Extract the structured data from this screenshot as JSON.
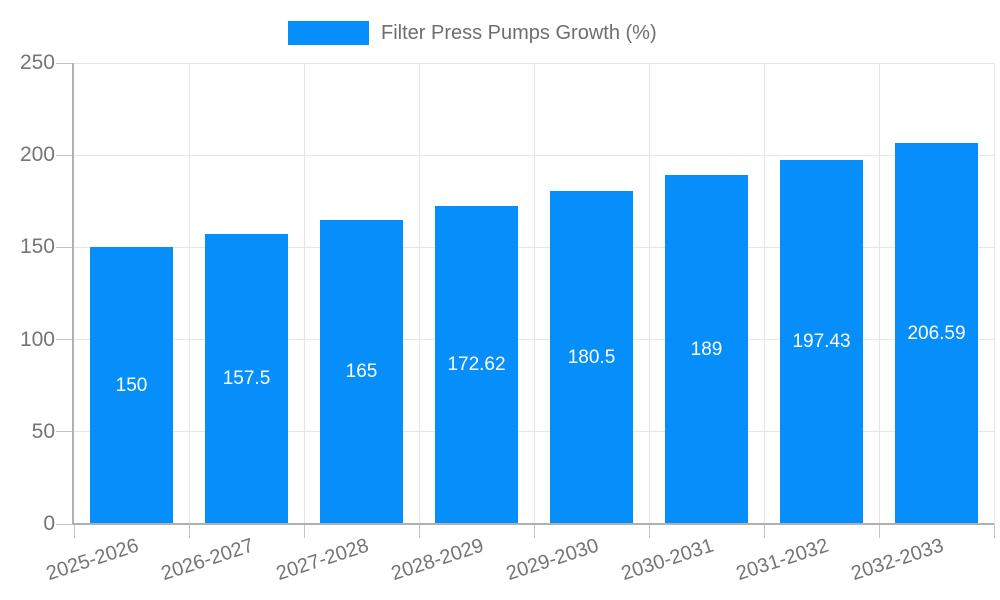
{
  "page": {
    "background": "#ffffff"
  },
  "legend": {
    "label": "Filter Press Pumps Growth (%)",
    "position": "top"
  },
  "colors": {
    "bar": "#068ffa",
    "grid": "#e6e6e6",
    "axis": "#b0b0b0",
    "tick_mark": "#c4c4c4",
    "tick_label": "#757575",
    "legend_text": "#6e6e6e",
    "value_label": "#ffffff"
  },
  "chart_data": {
    "type": "bar",
    "title": "Filter Press Pumps Growth (%)",
    "categories": [
      "2025-2026",
      "2026-2027",
      "2027-2028",
      "2028-2029",
      "2029-2030",
      "2030-2031",
      "2031-2032",
      "2032-2033"
    ],
    "values": [
      150,
      157.5,
      165,
      172.62,
      180.5,
      189,
      197.43,
      206.59
    ],
    "xlabel": "",
    "ylabel": "",
    "ylim": [
      0,
      250
    ],
    "ytick_step": 50,
    "yticks": [
      "0",
      "50",
      "100",
      "150",
      "200",
      "250"
    ],
    "grid": true,
    "legend_position": "top",
    "value_label_position": "inside-center",
    "category_label_rotation_deg": -18
  }
}
